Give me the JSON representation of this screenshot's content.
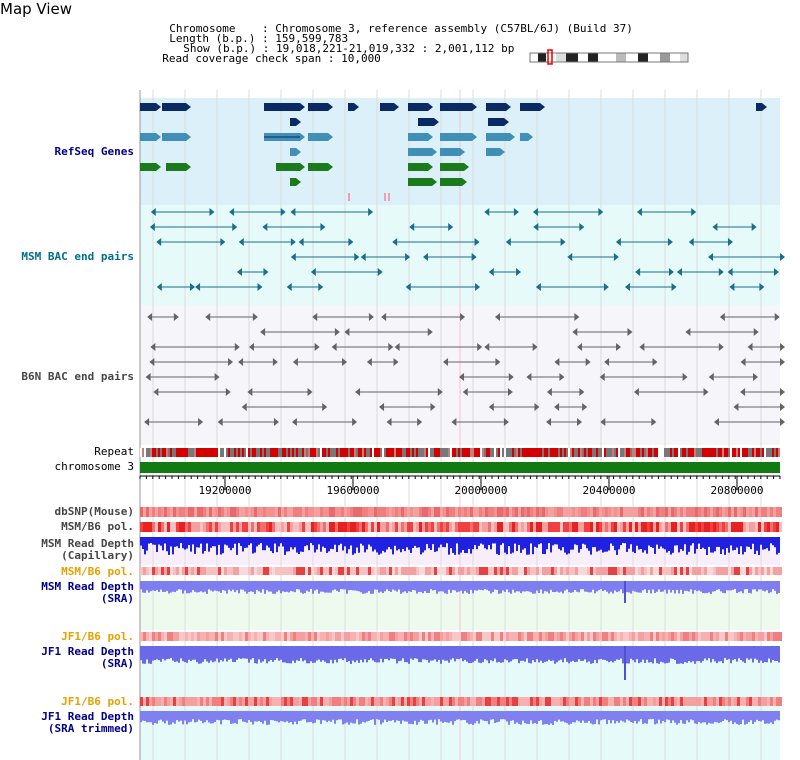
{
  "view_title": "Map View",
  "info": {
    "chromosome_label": "Chromosome",
    "chromosome_value": ": Chromosome 3, reference assembly (C57BL/6J) (Build 37)",
    "length_label": "Length (b.p.)",
    "length_value": ": 159,599,783",
    "show_label": "Show (b.p.)",
    "show_value": ": 19,018,221-21,019,332 : 2,001,112 bp",
    "coverage_label": "Read coverage check span",
    "coverage_value": ": 10,000"
  },
  "tracks": {
    "refseq": "RefSeq Genes",
    "msm_bac": "MSM BAC end pairs",
    "b6n_bac": "B6N BAC end pairs",
    "repeat": "Repeat",
    "chromosome": "chromosome 3",
    "dbsnp": "dbSNP(Mouse)",
    "msm_b6_pol_1": "MSM/B6 pol.",
    "msm_depth_cap_1": "MSM Read Depth",
    "msm_depth_cap_2": "(Capillary)",
    "msm_b6_pol_2": "MSM/B6 pol.",
    "msm_depth_sra_1": "MSM Read Depth",
    "msm_depth_sra_2": "(SRA)",
    "jf1_pol_1": "JF1/B6 pol.",
    "jf1_depth_sra_1": "JF1 Read Depth",
    "jf1_depth_sra_2": "(SRA)",
    "jf1_pol_2": "JF1/B6 pol.",
    "jf1_depth_trim_1": "JF1 Read Depth",
    "jf1_depth_trim_2": "(SRA trimmed)"
  },
  "axis_ticks": [
    "19200000",
    "19600000",
    "20000000",
    "20400000",
    "20800000"
  ],
  "colors": {
    "refseq_bg": "#dcf0fa",
    "msm_bg": "#e6fafa",
    "b6n_bg": "#f5f5fa",
    "gene_dark": "#0a2a64",
    "gene_mid": "#3f8fb6",
    "gene_green": "#1b7a1b",
    "bac_teal": "#186e8c",
    "bac_gray": "#646464",
    "chromosome_bar": "#117a11",
    "label_blue": "#00008b",
    "label_teal": "#006e8c",
    "label_orange": "#e8a000",
    "label_gray": "#464646"
  }
}
